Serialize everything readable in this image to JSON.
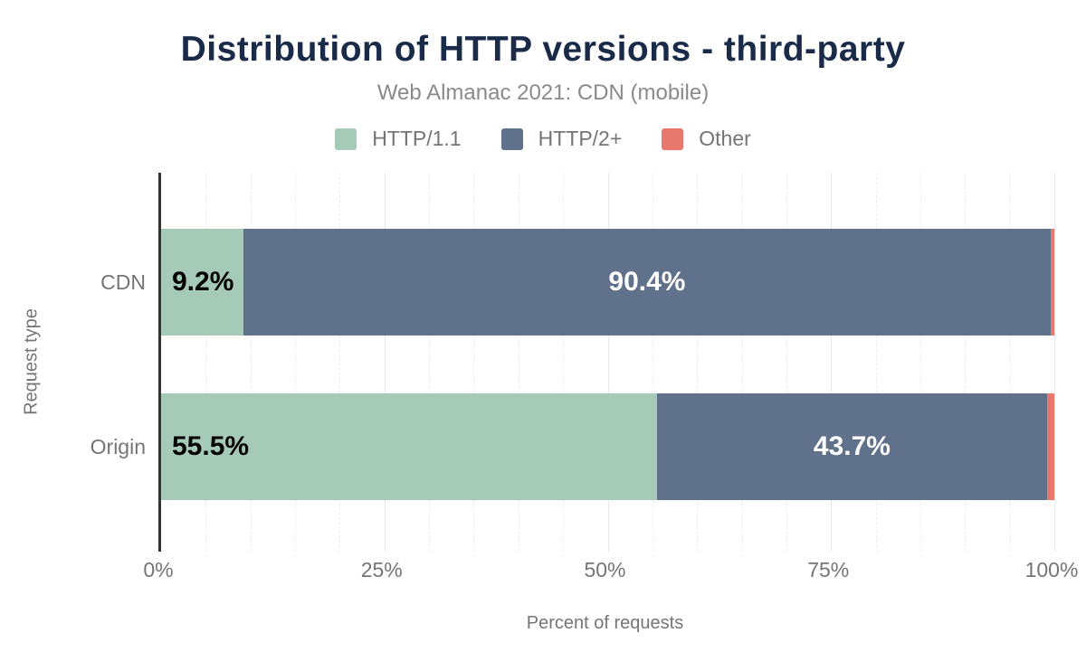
{
  "header": {
    "title": "Distribution of HTTP versions - third-party",
    "subtitle": "Web Almanac 2021: CDN (mobile)"
  },
  "colors": {
    "title": "#1a2b49",
    "axis_line": "#333333",
    "muted_text": "#757575",
    "http11": "#a6cab8",
    "http2plus": "#60718b",
    "other": "#e8786e"
  },
  "chart_data": {
    "type": "bar",
    "stacked": true,
    "orientation": "horizontal",
    "title": "Distribution of HTTP versions - third-party",
    "subtitle": "Web Almanac 2021: CDN (mobile)",
    "categories": [
      "CDN",
      "Origin"
    ],
    "series": [
      {
        "name": "HTTP/1.1",
        "color": "#a6cab8",
        "values": [
          9.2,
          55.5
        ]
      },
      {
        "name": "HTTP/2+",
        "color": "#60718b",
        "values": [
          90.4,
          43.7
        ]
      },
      {
        "name": "Other",
        "color": "#e8786e",
        "values": [
          0.4,
          0.8
        ]
      }
    ],
    "bar_labels": [
      [
        "9.2%",
        "90.4%",
        ""
      ],
      [
        "55.5%",
        "43.7%",
        ""
      ]
    ],
    "xlabel": "Percent of requests",
    "ylabel": "Request type",
    "x_ticks": [
      "0%",
      "25%",
      "50%",
      "75%",
      "100%"
    ],
    "xlim": [
      0,
      100
    ],
    "grid": "minor dashed every 5%, major solid every 25%",
    "legend_position": "top-center"
  }
}
